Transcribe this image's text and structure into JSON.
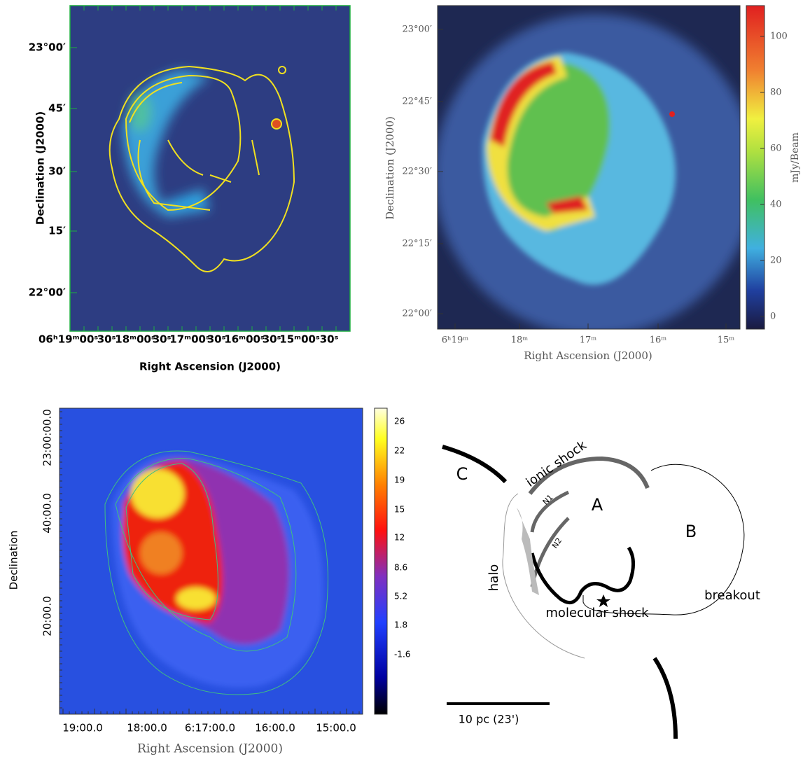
{
  "panels": [
    {
      "x_label": "Right Ascension (J2000)",
      "y_label": "Declination (J2000)",
      "x_ticks": [
        "06ʰ19ᵐ00ˢ",
        "30ˢ",
        "18ᵐ00ˢ",
        "30ˢ",
        "17ᵐ00ˢ",
        "30ˢ",
        "16ᵐ00ˢ",
        "30ˢ",
        "15ᵐ00ˢ",
        "30ˢ"
      ],
      "y_ticks": [
        "23°00′",
        "45′",
        "30′",
        "15′",
        "22°00′"
      ]
    },
    {
      "x_label": "Right Ascension (J2000)",
      "y_label": "Declination (J2000)",
      "x_ticks": [
        "6ʰ19ᵐ",
        "18ᵐ",
        "17ᵐ",
        "16ᵐ",
        "15ᵐ"
      ],
      "y_ticks": [
        "23°00′",
        "22°45′",
        "22°30′",
        "22°15′",
        "22°00′"
      ],
      "colorbar_label": "mJy/Beam",
      "colorbar_ticks": [
        "0",
        "20",
        "40",
        "60",
        "80",
        "100"
      ]
    },
    {
      "x_label": "Right Ascension (J2000)",
      "y_label": "Declination",
      "x_ticks": [
        "19:00.0",
        "18:00.0",
        "6:17:00.0",
        "16:00.0",
        "15:00.0"
      ],
      "y_ticks": [
        "23:00:00.0",
        "40:00.0",
        "20:00.0"
      ],
      "colorbar_ticks": [
        "26",
        "22",
        "19",
        "15",
        "12",
        "8.6",
        "5.2",
        "1.8",
        "-1.6"
      ]
    }
  ],
  "diagram": {
    "c": "C",
    "ionic_shock": "ionic shock",
    "n1": "N1",
    "n2": "N2",
    "a": "A",
    "b": "B",
    "halo": "halo",
    "breakout": "breakout",
    "molecular_shock": "molecular shock",
    "scale": "10 pc (23')"
  }
}
